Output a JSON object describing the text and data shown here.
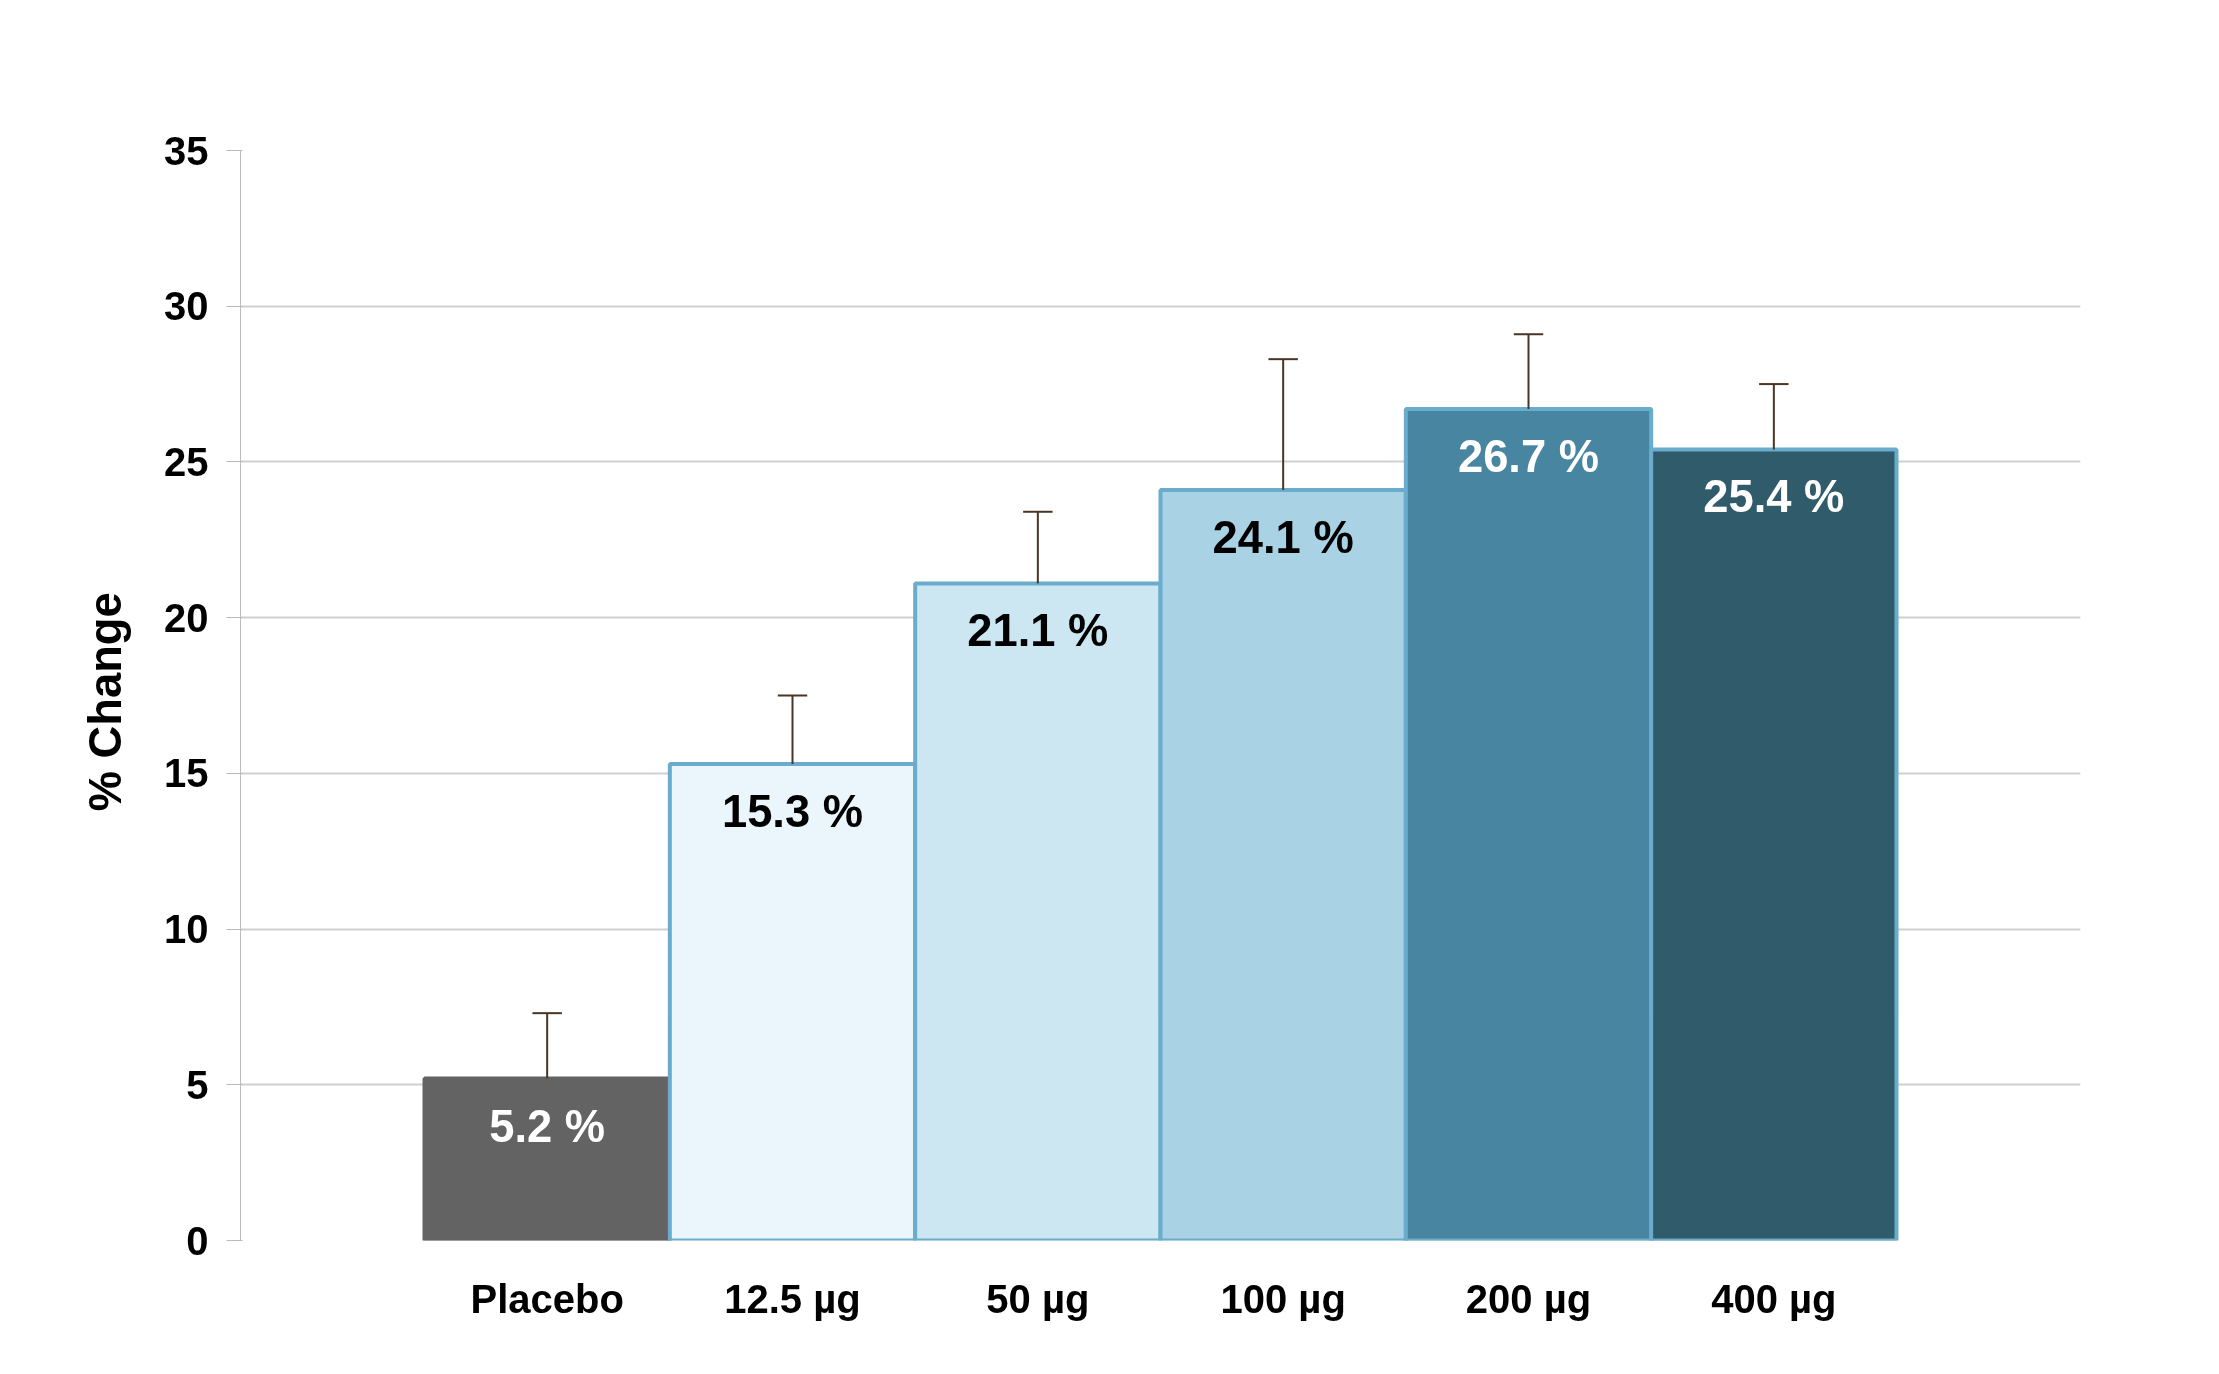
{
  "chart_data": {
    "type": "bar",
    "ylabel": "%  Change",
    "categories": [
      "Placebo",
      "12.5 µg",
      "50 µg",
      "100 µg",
      "200 µg",
      "400 µg"
    ],
    "values": [
      5.2,
      15.3,
      21.1,
      24.1,
      26.7,
      25.4
    ],
    "colors": [
      "#636363",
      "#eaf6fb",
      "#cce6f2",
      "#a9d2e4",
      "#4785a1",
      "#305b6b"
    ],
    "errors": [
      [
        5.2,
        7.3
      ],
      [
        15.3,
        17.5
      ],
      [
        21.1,
        23.4
      ],
      [
        24.1,
        28.3
      ],
      [
        26.7,
        29.1
      ],
      [
        25.4,
        27.5
      ]
    ],
    "value_labels": [
      "5.2 %",
      "15.3 %",
      "21.1 %",
      "24.1 %",
      "26.7 %",
      "25.4 %"
    ],
    "ylim": [
      0,
      35
    ],
    "yticks": [
      0,
      5,
      10,
      15,
      20,
      25,
      30,
      35
    ],
    "grid": "y"
  }
}
